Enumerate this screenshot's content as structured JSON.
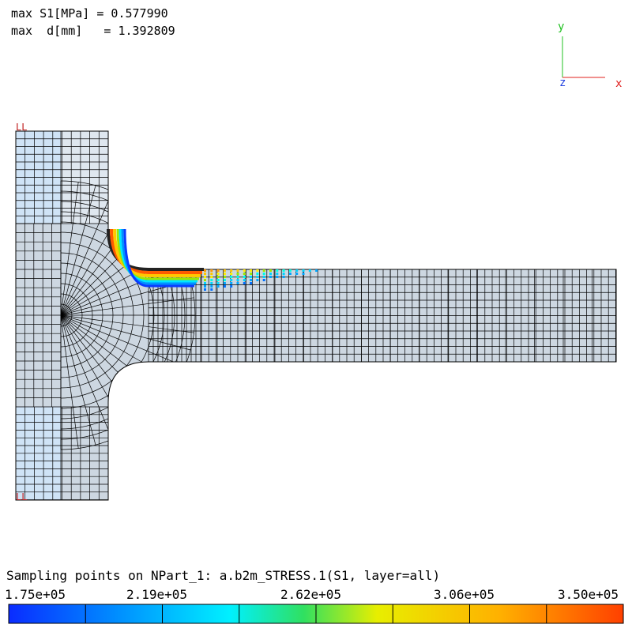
{
  "header": {
    "line1": "max S1[MPa] = 0.577990",
    "line2": "max  d[mm]   = 1.392809"
  },
  "axes": {
    "x_label": "x",
    "y_label": "y",
    "z_label": "z",
    "x_color": "#e0201e",
    "y_color": "#20c020",
    "z_color": "#2040e0"
  },
  "markers": {
    "top": "LL",
    "bottom": "LL"
  },
  "mesh": {
    "fill_color": "#cdd7e1",
    "fill_color_light": "#cfe3f6",
    "line_color": "#000000"
  },
  "legend": {
    "caption": "Sampling points on NPart_1: a.b2m_STRESS.1(S1, layer=all)",
    "ticks": [
      "1.75e+05",
      "2.19e+05",
      "2.62e+05",
      "3.06e+05",
      "3.50e+05"
    ],
    "min": 175000,
    "max": 350000,
    "segment_colors": [
      "#0a3cff",
      "#0070ff",
      "#00a5ff",
      "#00d5ff",
      "#00ffe6",
      "#9ce800",
      "#ffee00",
      "#ffc800",
      "#ff9a00",
      "#ff5a00"
    ]
  }
}
